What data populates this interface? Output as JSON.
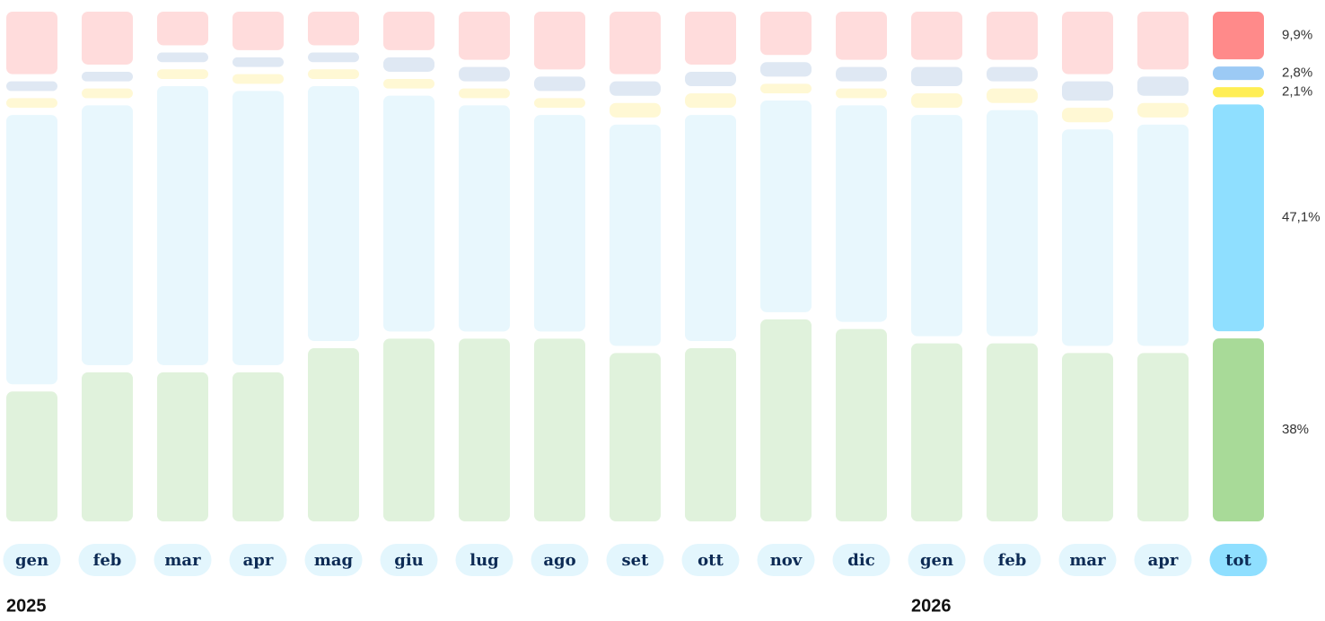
{
  "chart_data": {
    "type": "stacked_bar",
    "categories": [
      "gen",
      "feb",
      "mar",
      "apr",
      "mag",
      "giu",
      "lug",
      "ago",
      "set",
      "ott",
      "nov",
      "dic",
      "gen",
      "feb",
      "mar",
      "apr",
      "tot"
    ],
    "groups": [
      {
        "label": "2025",
        "start": 0
      },
      {
        "label": "2026",
        "start": 12
      }
    ],
    "series": [
      {
        "color": "#a8da98",
        "muted_color": "#e0f2dc",
        "values": [
          27,
          31,
          31,
          31,
          36,
          38,
          38,
          38,
          35,
          36,
          42,
          40,
          37,
          37,
          35,
          35,
          38
        ],
        "value_labels": [
          null,
          null,
          null,
          null,
          null,
          null,
          null,
          null,
          null,
          null,
          null,
          null,
          null,
          null,
          null,
          null,
          "38%"
        ]
      },
      {
        "color": "#8fdfff",
        "muted_color": "#e8f7fd",
        "values": [
          56,
          54,
          58,
          57,
          53,
          49,
          47,
          45,
          46,
          47,
          44,
          45,
          46,
          47,
          45,
          46,
          47.1
        ],
        "value_labels": [
          null,
          null,
          null,
          null,
          null,
          null,
          null,
          null,
          null,
          null,
          null,
          null,
          null,
          null,
          null,
          null,
          "47,1%"
        ]
      },
      {
        "color": "#ffee55",
        "muted_color": "#fff8d4",
        "values": [
          2,
          2,
          2,
          2,
          2,
          2,
          2,
          2,
          3,
          3,
          2,
          2,
          3,
          3,
          3,
          3,
          2.1
        ],
        "value_labels": [
          null,
          null,
          null,
          null,
          null,
          null,
          null,
          null,
          null,
          null,
          null,
          null,
          null,
          null,
          null,
          null,
          "2,1%"
        ]
      },
      {
        "color": "#9ccaf5",
        "muted_color": "#dfe8f3",
        "values": [
          2,
          2,
          2,
          2,
          2,
          3,
          3,
          3,
          3,
          3,
          3,
          3,
          4,
          3,
          4,
          4,
          2.8
        ],
        "value_labels": [
          null,
          null,
          null,
          null,
          null,
          null,
          null,
          null,
          null,
          null,
          null,
          null,
          null,
          null,
          null,
          null,
          "2,8%"
        ]
      },
      {
        "color": "#ff8a8a",
        "muted_color": "#ffdcdc",
        "values": [
          13,
          11,
          7,
          8,
          7,
          8,
          10,
          12,
          13,
          11,
          9,
          10,
          10,
          10,
          13,
          12,
          9.9
        ],
        "value_labels": [
          null,
          null,
          null,
          null,
          null,
          null,
          null,
          null,
          null,
          null,
          null,
          null,
          null,
          null,
          null,
          null,
          "9,9%"
        ]
      }
    ]
  }
}
